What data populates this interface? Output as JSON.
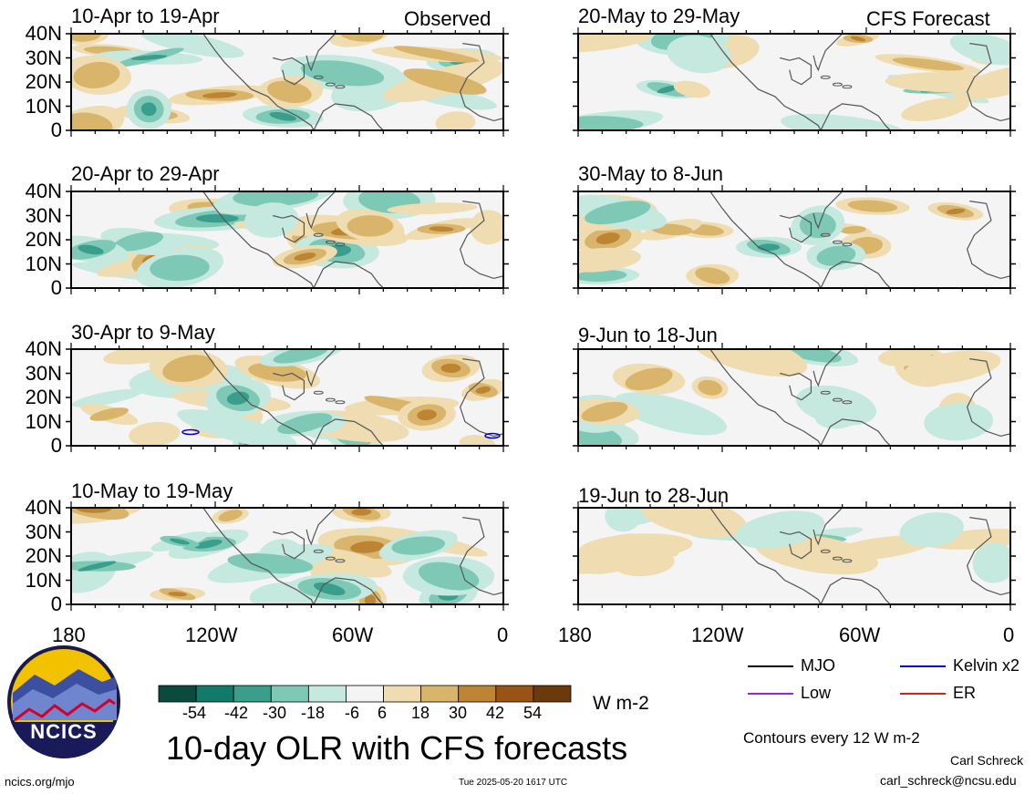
{
  "chart_data": {
    "type": "heatmap",
    "title": "10-day OLR with CFS forecasts",
    "unit": "W m-2",
    "observed_label": "Observed",
    "forecast_label": "CFS Forecast",
    "y_ticks": [
      "40N",
      "30N",
      "20N",
      "10N",
      "0"
    ],
    "x_ticks": [
      "180",
      "120W",
      "60W",
      "0"
    ],
    "observed_panels": [
      "10-Apr to 19-Apr",
      "20-Apr to 29-Apr",
      "30-Apr to 9-May",
      "10-May to 19-May"
    ],
    "forecast_panels": [
      "20-May to 29-May",
      "30-May to 8-Jun",
      "9-Jun to 18-Jun",
      "19-Jun to 28-Jun"
    ],
    "colorbar": {
      "labels": [
        "-54",
        "-42",
        "-30",
        "-18",
        "-6",
        "6",
        "18",
        "30",
        "42",
        "54"
      ],
      "colors": [
        "#0b4a3c",
        "#127a68",
        "#3a9e8c",
        "#7ec8b6",
        "#c5e8df",
        "#f4f4f4",
        "#efdcb0",
        "#d9b46b",
        "#bd8433",
        "#995414",
        "#6b3a0c"
      ]
    },
    "contour_legend": [
      {
        "label": "MJO",
        "color": "#000000"
      },
      {
        "label": "Kelvin x2",
        "color": "#0000cc"
      },
      {
        "label": "Low",
        "color": "#8a2be2"
      },
      {
        "label": "ER",
        "color": "#d62020"
      }
    ],
    "contour_note": "Contours every 12 W m-2",
    "grid": false
  },
  "footer": {
    "site": "ncics.org/mjo",
    "timestamp": "Tue 2025-05-20 1617 UTC",
    "author": "Carl Schreck",
    "email": "carl_schreck@ncsu.edu",
    "logo_text": "NCICS"
  }
}
